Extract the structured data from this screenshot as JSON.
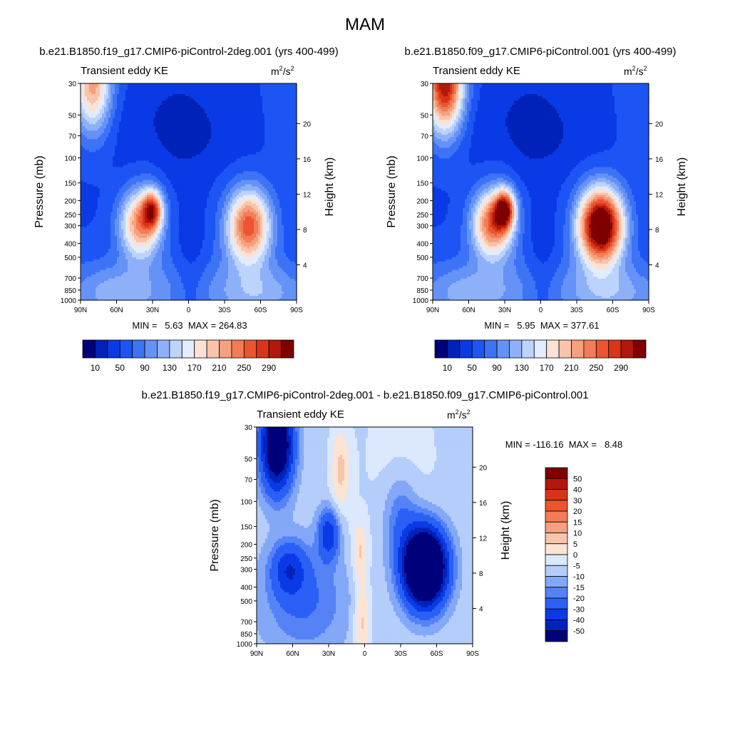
{
  "figure": {
    "title": "MAM",
    "units_base": "m",
    "units_sup1": "2",
    "units_mid": "/s",
    "units_sup2": "2"
  },
  "colors": {
    "pos_scale": [
      "#00007a",
      "#0022b8",
      "#0a3ae6",
      "#1d55f5",
      "#3d73f5",
      "#6592f7",
      "#8db0f9",
      "#bcd3fb",
      "#e2ecfd",
      "#fbe2d4",
      "#f8c4aa",
      "#f5a07e",
      "#f27c56",
      "#ec5530",
      "#d93417",
      "#b2180b",
      "#7e0000"
    ],
    "diff_scale": [
      "#00007a",
      "#0022b8",
      "#0a3ae6",
      "#2a60f5",
      "#5583f6",
      "#84a8f8",
      "#b4cdfa",
      "#dbe8fd",
      "#fbe4d4",
      "#f8c4aa",
      "#f5a07e",
      "#f27c56",
      "#ec5530",
      "#d93417",
      "#b2180b",
      "#7e0000"
    ]
  },
  "chart_data": [
    {
      "type": "heatmap",
      "title": "b.e21.B1850.f19_g17.CMIP6-piControl-2deg.001 (yrs 400-499)",
      "left_label": "Transient eddy KE",
      "ylabel": "Pressure (mb)",
      "ylabel_right": "Height (km)",
      "x_ticks": [
        "90N",
        "60N",
        "30N",
        "0",
        "30S",
        "60S",
        "90S"
      ],
      "x_range": [
        90,
        -90
      ],
      "y_ticks": [
        30,
        50,
        70,
        100,
        150,
        200,
        250,
        300,
        400,
        500,
        700,
        850,
        1000
      ],
      "y_range": [
        30,
        1000
      ],
      "y_scale": "log",
      "height_ticks": [
        20,
        16,
        12,
        8,
        4
      ],
      "min_max": "MIN =   5.63  MAX = 264.83",
      "contour_levels": [
        10,
        30,
        50,
        70,
        90,
        110,
        130,
        150,
        170,
        190,
        210,
        230,
        250,
        270,
        290,
        310
      ],
      "colorbar_labels": [
        "10",
        "50",
        "90",
        "130",
        "170",
        "210",
        "250",
        "290"
      ],
      "features": [
        {
          "lat": 45,
          "p": 300,
          "value": 235
        },
        {
          "lat": 30,
          "p": 250,
          "value": 230
        },
        {
          "lat": -50,
          "p": 300,
          "value": 265
        },
        {
          "lat": 75,
          "p": 30,
          "value": 215
        },
        {
          "lat": 0,
          "p": 60,
          "value": 6
        }
      ]
    },
    {
      "type": "heatmap",
      "title": "b.e21.B1850.f09_g17.CMIP6-piControl.001 (yrs 400-499)",
      "left_label": "Transient eddy KE",
      "ylabel": "Pressure (mb)",
      "ylabel_right": "Height (km)",
      "x_ticks": [
        "90N",
        "60N",
        "30N",
        "0",
        "30S",
        "60S",
        "90S"
      ],
      "x_range": [
        90,
        -90
      ],
      "y_ticks": [
        30,
        50,
        70,
        100,
        150,
        200,
        250,
        300,
        400,
        500,
        700,
        850,
        1000
      ],
      "y_range": [
        30,
        1000
      ],
      "y_scale": "log",
      "height_ticks": [
        20,
        16,
        12,
        8,
        4
      ],
      "min_max": "MIN =   5.95  MAX = 377.61",
      "contour_levels": [
        10,
        30,
        50,
        70,
        90,
        110,
        130,
        150,
        170,
        190,
        210,
        230,
        250,
        270,
        290,
        310
      ],
      "colorbar_labels": [
        "10",
        "50",
        "90",
        "130",
        "170",
        "210",
        "250",
        "290"
      ],
      "features": [
        {
          "lat": 45,
          "p": 300,
          "value": 260
        },
        {
          "lat": 30,
          "p": 220,
          "value": 260
        },
        {
          "lat": -50,
          "p": 300,
          "value": 378
        },
        {
          "lat": 75,
          "p": 30,
          "value": 310
        },
        {
          "lat": 0,
          "p": 60,
          "value": 6
        }
      ]
    },
    {
      "type": "heatmap",
      "title": "b.e21.B1850.f19_g17.CMIP6-piControl-2deg.001 - b.e21.B1850.f09_g17.CMIP6-piControl.001",
      "left_label": "Transient eddy KE",
      "ylabel": "Pressure (mb)",
      "ylabel_right": "Height (km)",
      "x_ticks": [
        "90N",
        "60N",
        "30N",
        "0",
        "30S",
        "60S",
        "90S"
      ],
      "x_range": [
        90,
        -90
      ],
      "y_ticks": [
        30,
        50,
        70,
        100,
        150,
        200,
        250,
        300,
        400,
        500,
        700,
        850,
        1000
      ],
      "y_range": [
        30,
        1000
      ],
      "y_scale": "log",
      "height_ticks": [
        20,
        16,
        12,
        8,
        4
      ],
      "min_max": "MIN = -116.16  MAX =   8.48",
      "contour_levels": [
        -50,
        -40,
        -30,
        -20,
        -15,
        -10,
        -5,
        0,
        5,
        10,
        15,
        20,
        30,
        40,
        50
      ],
      "colorbar_labels": [
        "50",
        "40",
        "30",
        "20",
        "15",
        "10",
        "5",
        "0",
        "-5",
        "-10",
        "-15",
        "-20",
        "-30",
        "-40",
        "-50"
      ],
      "features": [
        {
          "lat": -50,
          "p": 300,
          "value": -116
        },
        {
          "lat": 75,
          "p": 40,
          "value": -80
        },
        {
          "lat": 30,
          "p": 180,
          "value": -35
        },
        {
          "lat": 65,
          "p": 300,
          "value": -30
        },
        {
          "lat": 5,
          "p": 200,
          "value": 5
        },
        {
          "lat": 3,
          "p": 650,
          "value": 8
        }
      ]
    }
  ]
}
